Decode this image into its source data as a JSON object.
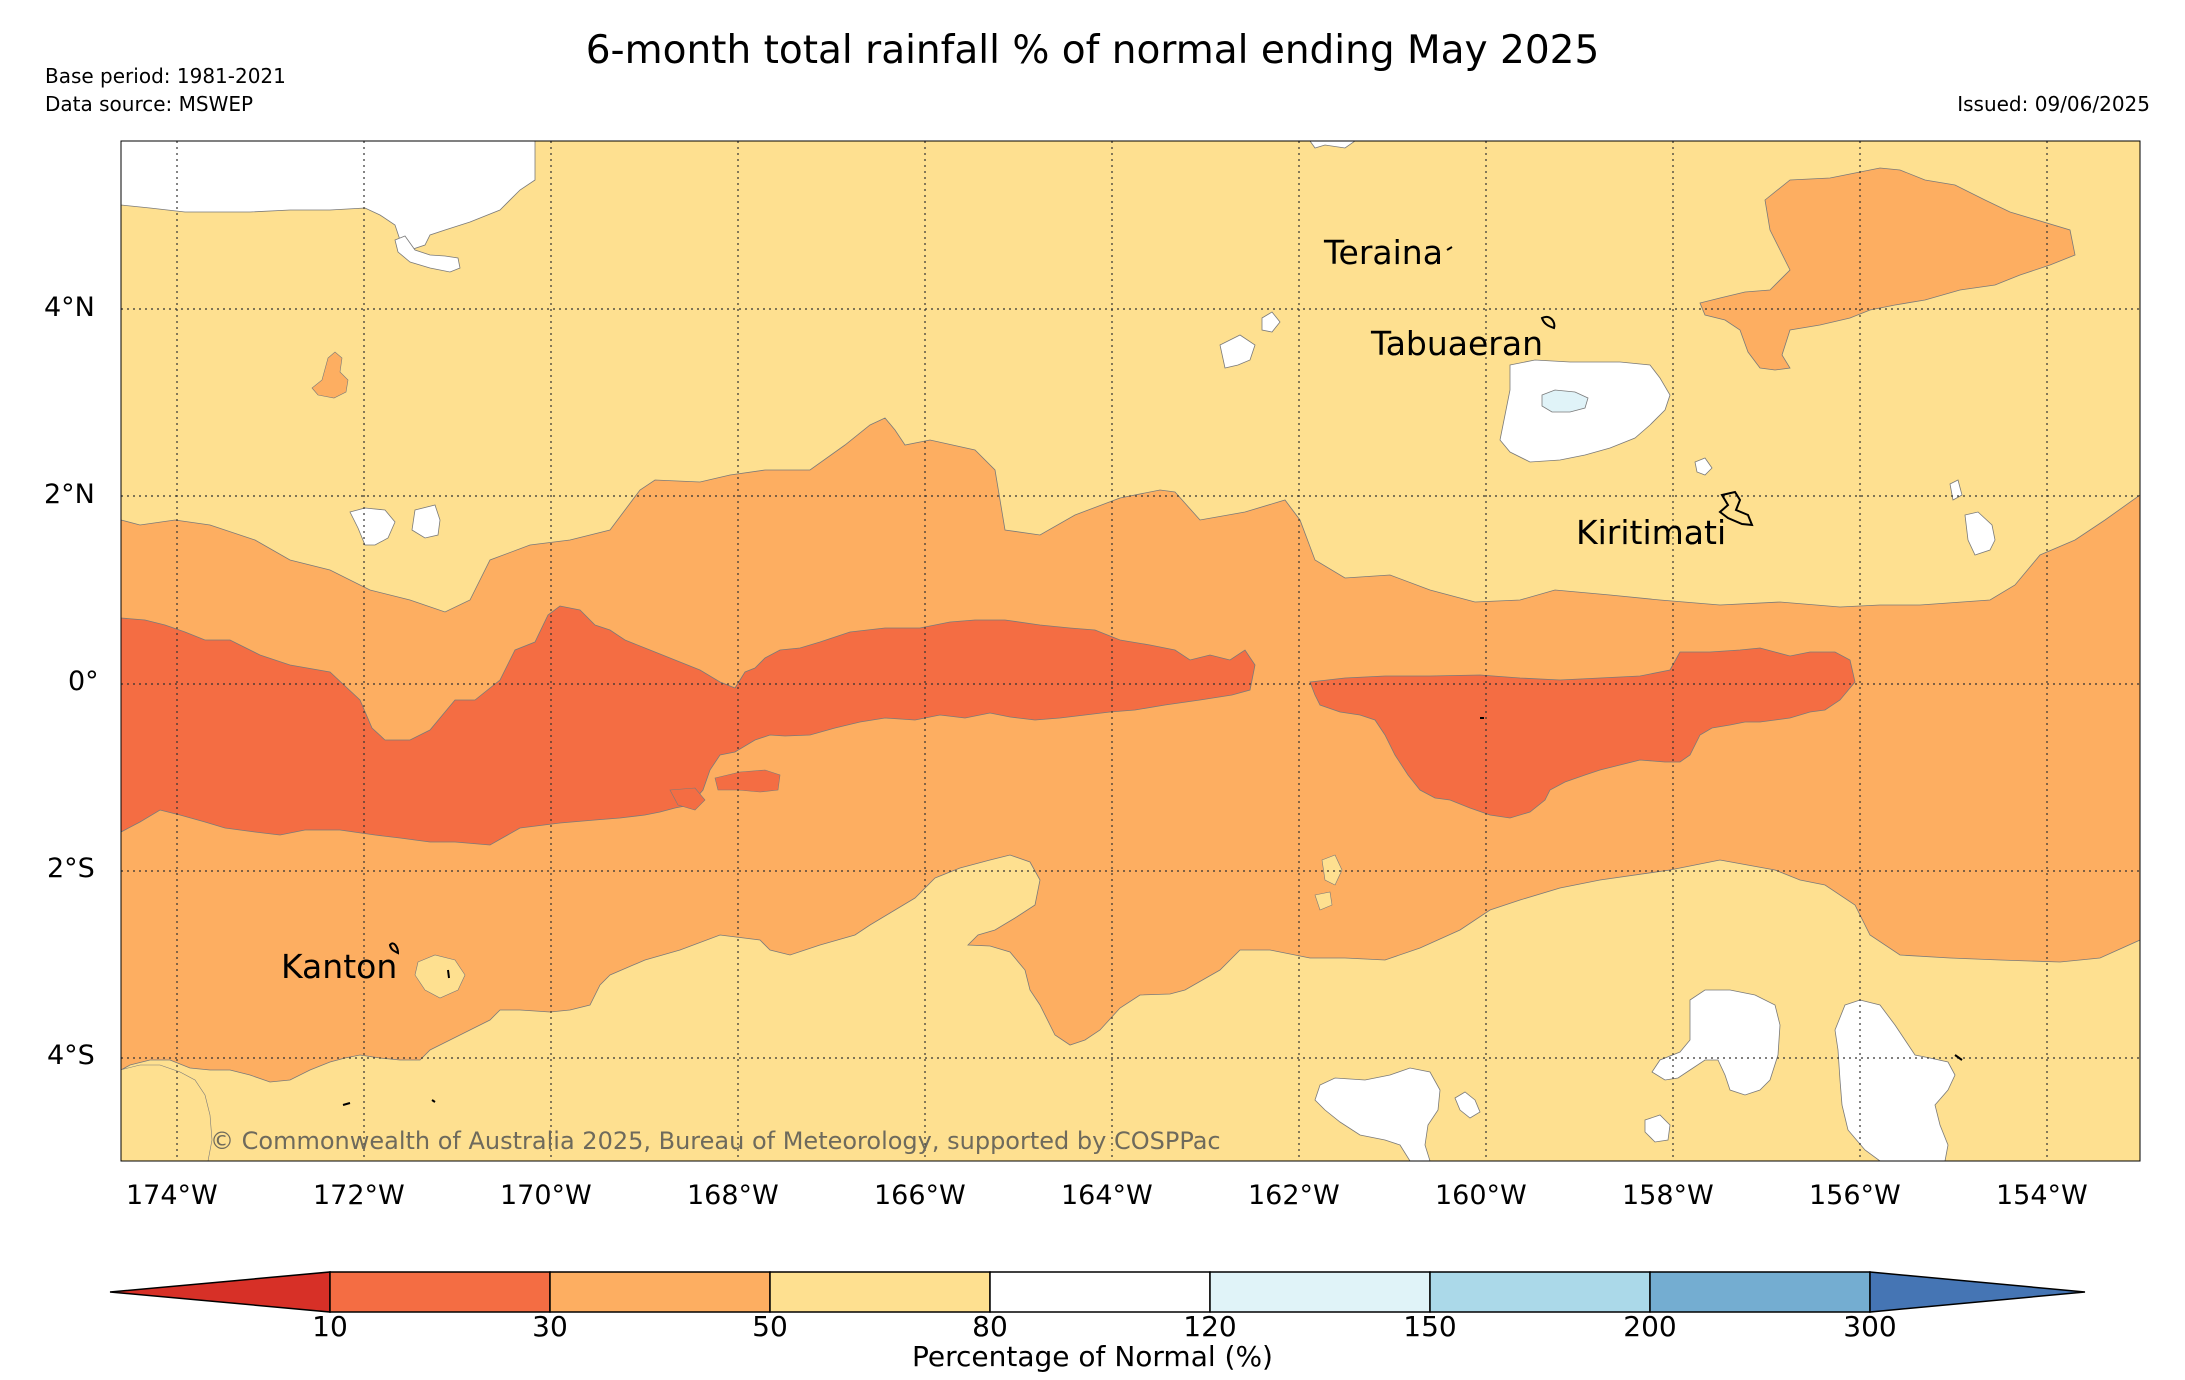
{
  "header": {
    "title": "6-month total rainfall % of normal ending May 2025",
    "base_period": "Base period: 1981-2021",
    "data_source": "Data source: MSWEP",
    "issued": "Issued: 09/06/2025"
  },
  "map": {
    "lat_labels": [
      "4°N",
      "2°N",
      "0°",
      "2°S",
      "4°S"
    ],
    "lon_labels": [
      "174°W",
      "172°W",
      "170°W",
      "168°W",
      "166°W",
      "164°W",
      "162°W",
      "160°W",
      "158°W",
      "156°W",
      "154°W"
    ],
    "places": {
      "teraina": "Teraina",
      "tabuaeran": "Tabuaeran",
      "kiritimati": "Kiritimati",
      "kanton": "Kanton"
    },
    "copyright": "© Commonwealth of Australia 2025, Bureau of Meteorology, supported by COSPPac",
    "colors": {
      "c_10_30": "#f46d43",
      "c_30_50": "#fdae61",
      "c_50_80": "#fee090",
      "c_80_120": "#ffffff",
      "c_120_150": "#e0f3f8",
      "c_150_200": "#abd9e9",
      "c_200_300": "#74add1",
      "c_above_300": "#4575b4",
      "c_below_10": "#d73027"
    }
  },
  "colorbar": {
    "title": "Percentage of Normal (%)",
    "labels": [
      "10",
      "30",
      "50",
      "80",
      "120",
      "150",
      "200",
      "300"
    ]
  }
}
